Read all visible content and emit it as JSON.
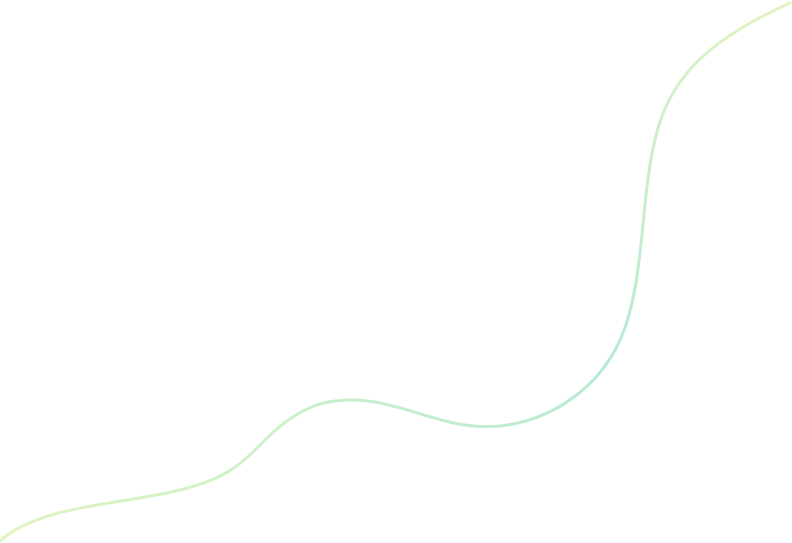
{
  "decoration": {
    "icon": "wave-line",
    "colors": {
      "end": "#e0f5c2",
      "middle": "#b6ead2"
    }
  }
}
